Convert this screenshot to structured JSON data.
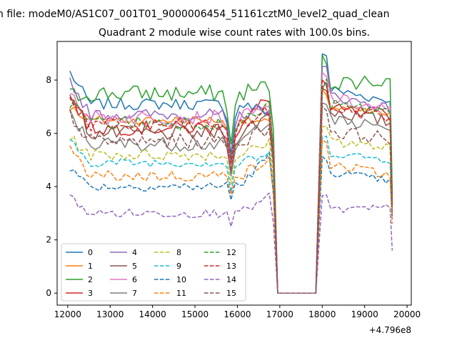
{
  "suptitle": "n file: modeM0/AS1C07_001T01_9000006454_51161cztM0_level2_quad_clean",
  "chart_data": {
    "type": "line",
    "title": "Quadrant 2 module wise count rates with 100.0s bins.",
    "xlabel": "",
    "ylabel": "",
    "x_offset_label": "+4.796e8",
    "xlim": [
      11750,
      20100
    ],
    "ylim": [
      -0.45,
      9.45
    ],
    "xticks": [
      12000,
      13000,
      14000,
      15000,
      16000,
      17000,
      18000,
      19000,
      20000
    ],
    "xtick_labels": [
      "12000",
      "13000",
      "14000",
      "15000",
      "16000",
      "17000",
      "18000",
      "19000",
      "20000"
    ],
    "yticks": [
      0,
      2,
      4,
      6,
      8
    ],
    "ytick_labels": [
      "0",
      "2",
      "4",
      "6",
      "8"
    ],
    "grid": false,
    "legend_position": "lower-left",
    "segments": [
      {
        "x_start": 12050,
        "x_end": 16750
      },
      {
        "x_start": 18000,
        "x_end": 19650
      }
    ],
    "gap_x": [
      16950,
      17250,
      17550,
      17850
    ],
    "series": [
      {
        "name": "0",
        "style": "solid",
        "color": "#1f77b4",
        "start": 8.3,
        "mean": 7.1,
        "amp": 0.2,
        "end": 6.8,
        "dip": 5.2,
        "seg2_peak": 8.95,
        "seg2_mean": 7.7,
        "seg2_end": 7.2,
        "tail": 3.5
      },
      {
        "name": "1",
        "style": "solid",
        "color": "#ff7f0e",
        "start": 7.0,
        "mean": 6.5,
        "amp": 0.15,
        "end": 6.4,
        "dip": 4.9,
        "seg2_peak": 7.5,
        "seg2_mean": 7.0,
        "seg2_end": 6.7,
        "tail": 3.3
      },
      {
        "name": "2",
        "style": "solid",
        "color": "#2ca02c",
        "start": 7.4,
        "mean": 7.5,
        "amp": 0.3,
        "end": 7.8,
        "dip": 5.6,
        "seg2_peak": 8.7,
        "seg2_mean": 7.9,
        "seg2_end": 8.0,
        "tail": 3.8
      },
      {
        "name": "3",
        "style": "solid",
        "color": "#d62728",
        "start": 7.4,
        "mean": 6.2,
        "amp": 0.25,
        "end": 7.4,
        "dip": 4.8,
        "seg2_peak": 7.6,
        "seg2_mean": 6.9,
        "seg2_end": 6.7,
        "tail": 3.4
      },
      {
        "name": "4",
        "style": "solid",
        "color": "#9467bd",
        "start": 8.0,
        "mean": 6.7,
        "amp": 0.2,
        "end": 7.0,
        "dip": 5.0,
        "seg2_peak": 8.4,
        "seg2_mean": 7.5,
        "seg2_end": 6.9,
        "tail": 3.4
      },
      {
        "name": "5",
        "style": "solid",
        "color": "#8c564b",
        "start": 7.5,
        "mean": 6.0,
        "amp": 0.25,
        "end": 6.7,
        "dip": 4.5,
        "seg2_peak": 7.9,
        "seg2_mean": 6.9,
        "seg2_end": 6.4,
        "tail": 3.3
      },
      {
        "name": "6",
        "style": "solid",
        "color": "#e377c2",
        "start": 7.6,
        "mean": 6.6,
        "amp": 0.25,
        "end": 6.9,
        "dip": 4.8,
        "seg2_peak": 8.2,
        "seg2_mean": 7.4,
        "seg2_end": 6.8,
        "tail": 3.4
      },
      {
        "name": "7",
        "style": "solid",
        "color": "#7f7f7f",
        "start": 6.8,
        "mean": 5.6,
        "amp": 0.25,
        "end": 6.6,
        "dip": 4.4,
        "seg2_peak": 7.2,
        "seg2_mean": 6.5,
        "seg2_end": 6.2,
        "tail": 3.2
      },
      {
        "name": "8",
        "style": "dashed",
        "color": "#bcbd22",
        "start": 5.8,
        "mean": 5.2,
        "amp": 0.2,
        "end": 5.6,
        "dip": 4.1,
        "seg2_peak": 6.4,
        "seg2_mean": 5.8,
        "seg2_end": 5.4,
        "tail": 2.9
      },
      {
        "name": "9",
        "style": "dashed",
        "color": "#17becf",
        "start": 5.7,
        "mean": 4.9,
        "amp": 0.15,
        "end": 5.2,
        "dip": 3.8,
        "seg2_peak": 5.8,
        "seg2_mean": 5.3,
        "seg2_end": 5.0,
        "tail": 2.8
      },
      {
        "name": "10",
        "style": "dashed",
        "color": "#1f77b4",
        "start": 4.7,
        "mean": 4.0,
        "amp": 0.15,
        "end": 5.2,
        "dip": 3.5,
        "seg2_peak": 5.0,
        "seg2_mean": 4.6,
        "seg2_end": 4.2,
        "tail": 2.8
      },
      {
        "name": "11",
        "style": "dashed",
        "color": "#ff7f0e",
        "start": 5.4,
        "mean": 4.4,
        "amp": 0.2,
        "end": 5.0,
        "dip": 3.7,
        "seg2_peak": 5.6,
        "seg2_mean": 4.9,
        "seg2_end": 4.4,
        "tail": 2.6
      },
      {
        "name": "12",
        "style": "dashed",
        "color": "#2ca02c",
        "start": 7.2,
        "mean": 6.4,
        "amp": 0.25,
        "end": 7.0,
        "dip": 5.0,
        "seg2_peak": 7.8,
        "seg2_mean": 7.1,
        "seg2_end": 6.8,
        "tail": 3.4
      },
      {
        "name": "13",
        "style": "dashed",
        "color": "#d62728",
        "start": 7.5,
        "mean": 6.3,
        "amp": 0.25,
        "end": 6.8,
        "dip": 4.9,
        "seg2_peak": 7.8,
        "seg2_mean": 7.0,
        "seg2_end": 6.6,
        "tail": 3.3
      },
      {
        "name": "14",
        "style": "dashed",
        "color": "#9467bd",
        "start": 3.6,
        "mean": 3.0,
        "amp": 0.15,
        "end": 3.6,
        "dip": 2.5,
        "seg2_peak": 3.7,
        "seg2_mean": 3.1,
        "seg2_end": 3.2,
        "tail": 1.6
      },
      {
        "name": "15",
        "style": "dashed",
        "color": "#8c564b",
        "start": 6.7,
        "mean": 5.7,
        "amp": 0.25,
        "end": 6.2,
        "dip": 4.6,
        "seg2_peak": 7.0,
        "seg2_mean": 6.1,
        "seg2_end": 5.8,
        "tail": 2.9
      }
    ]
  }
}
